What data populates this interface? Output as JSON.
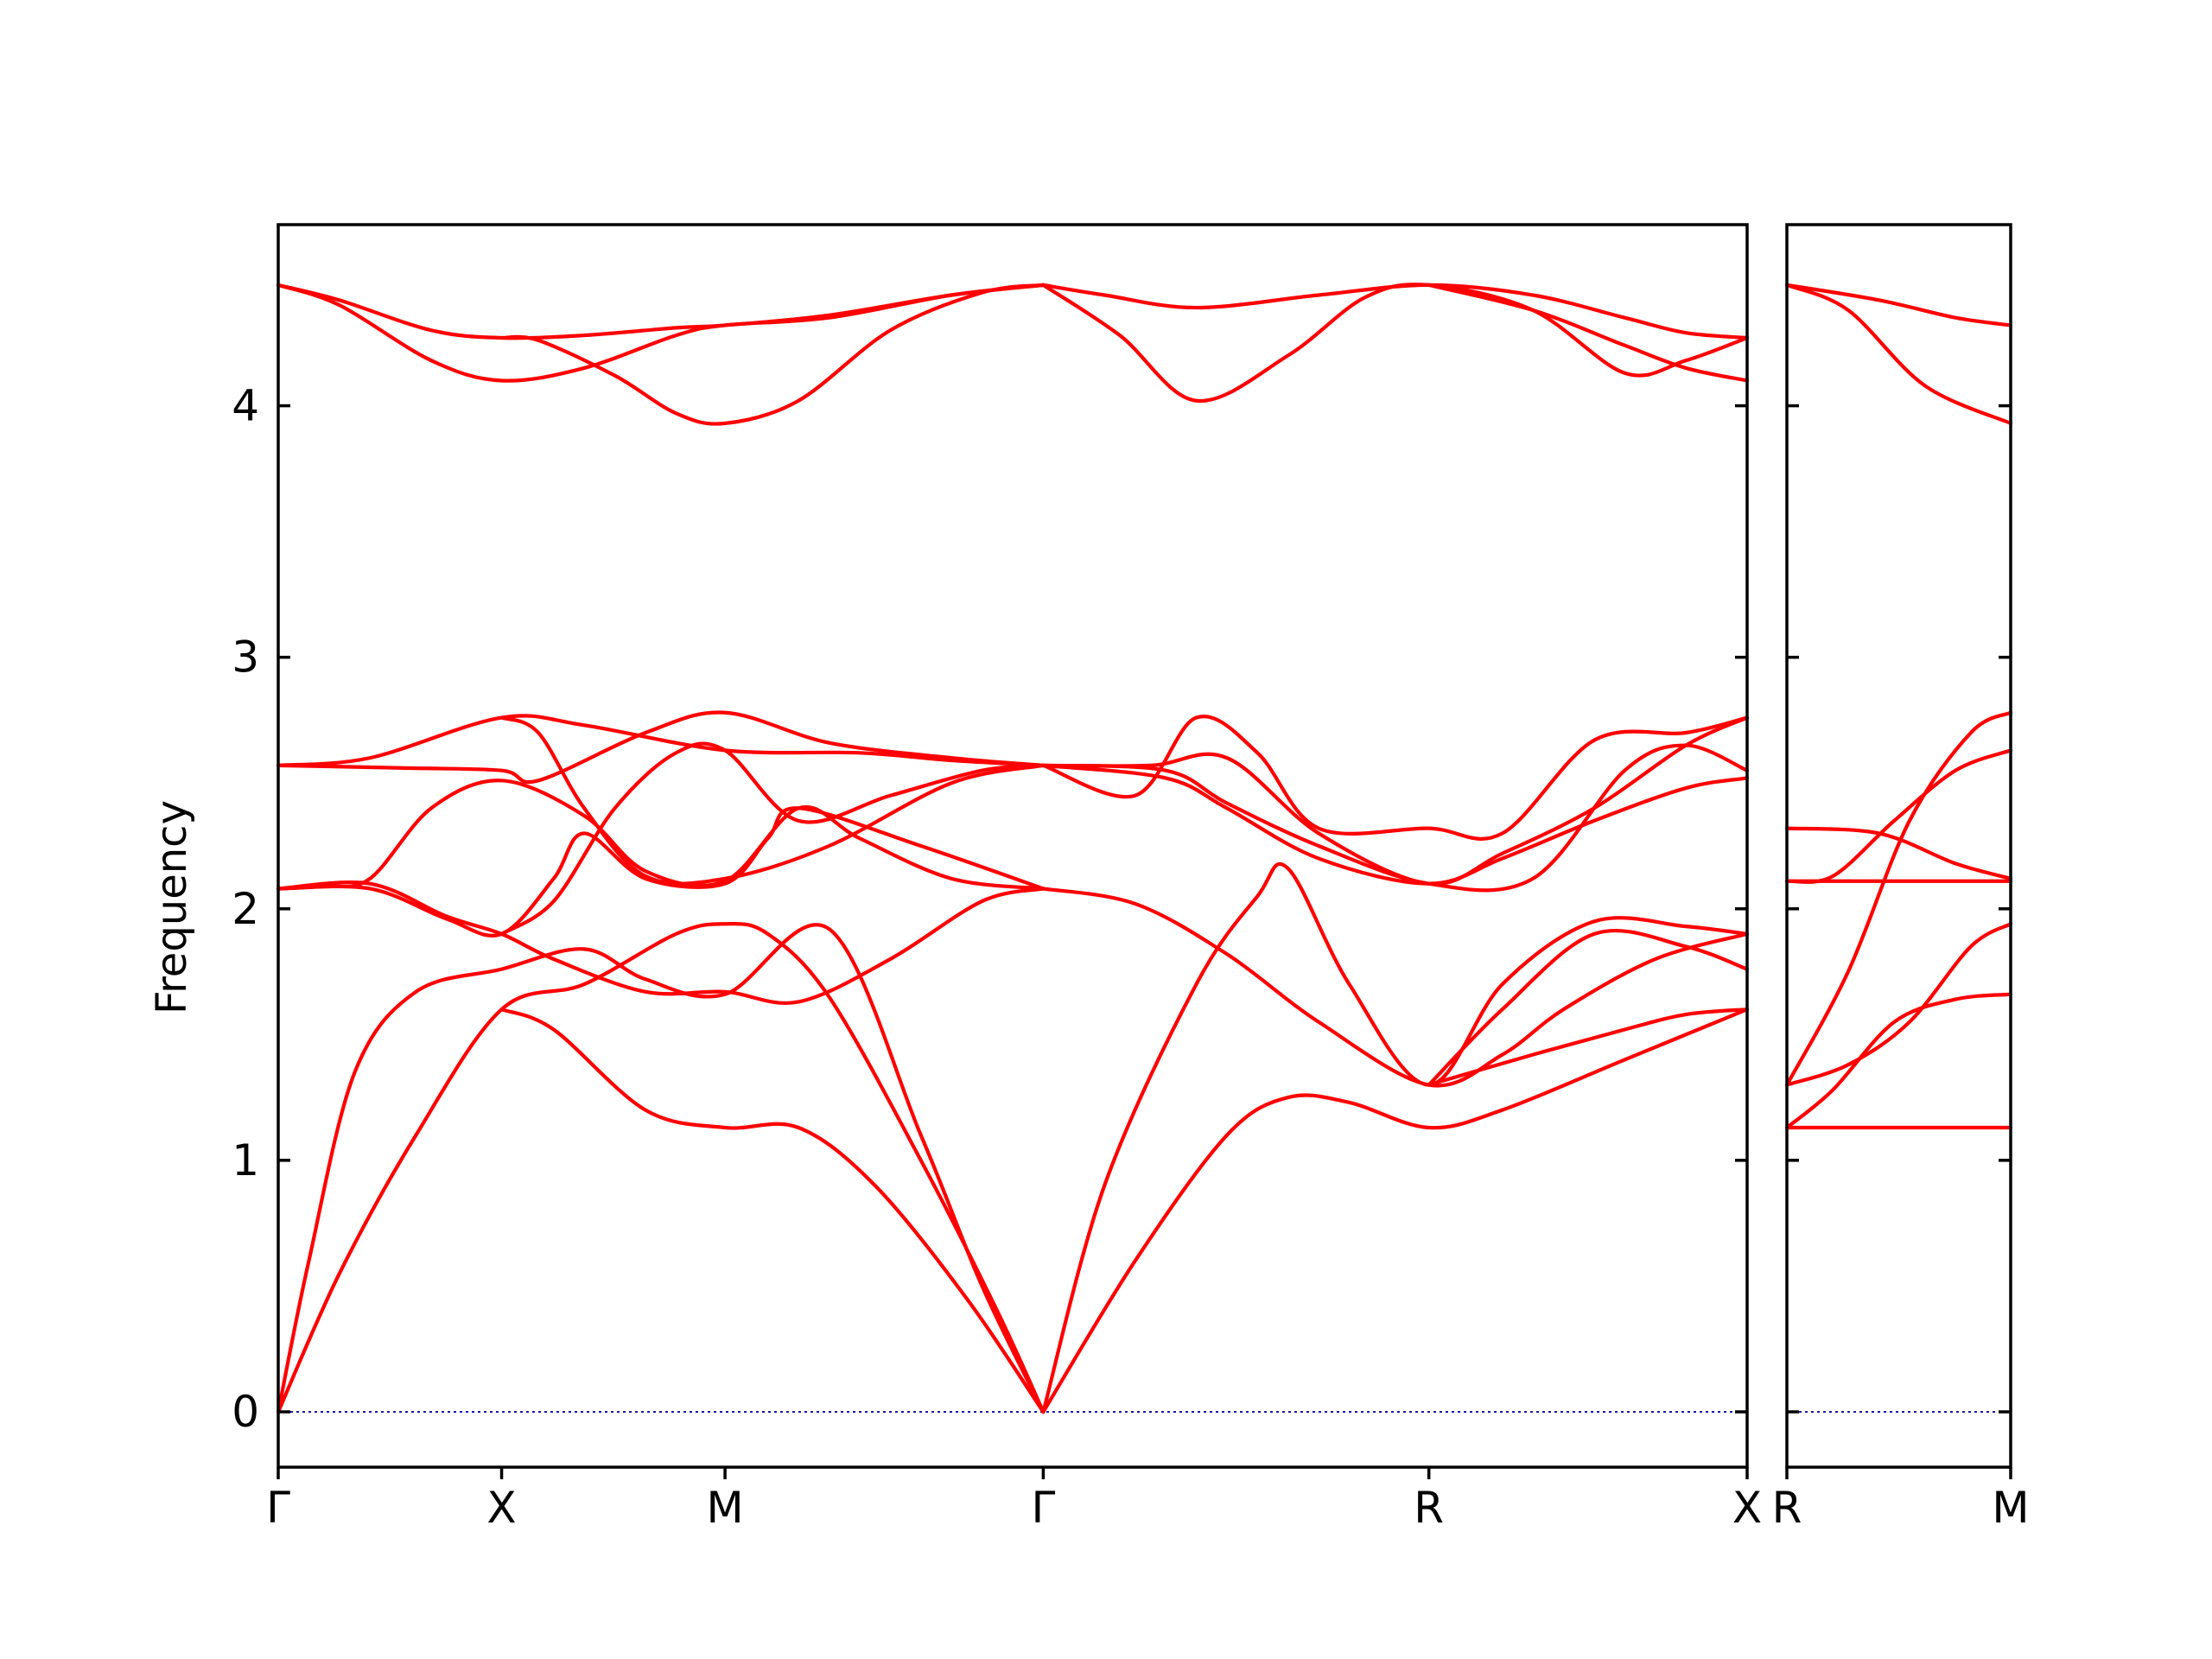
{
  "chart_data": {
    "type": "line",
    "ylabel": "Frequency",
    "ylim": [
      -0.22,
      4.72
    ],
    "yticks": [
      0,
      1,
      2,
      3,
      4
    ],
    "line_color": "#ff0000",
    "zero_line_color": "#1a1aa8",
    "panels": [
      {
        "xlim": [
          0,
          4.8
        ],
        "xticks": [
          {
            "label": "Γ",
            "x": 0
          },
          {
            "label": "X",
            "x": 0.73
          },
          {
            "label": "M",
            "x": 1.46
          },
          {
            "label": "Γ",
            "x": 2.5
          },
          {
            "label": "R",
            "x": 3.76
          },
          {
            "label": "X",
            "x": 4.8
          }
        ],
        "series": [
          {
            "x": [
              0,
              0.2,
              0.5,
              0.73,
              1.0,
              1.3,
              1.46,
              1.8,
              2.2,
              2.5
            ],
            "y": [
              4.48,
              4.42,
              4.3,
              4.27,
              4.28,
              4.31,
              4.32,
              4.36,
              4.44,
              4.48
            ]
          },
          {
            "x": [
              0,
              0.2,
              0.5,
              0.73,
              1.0,
              1.3,
              1.46,
              1.8,
              2.2,
              2.5
            ],
            "y": [
              4.48,
              4.4,
              4.18,
              4.1,
              4.15,
              4.28,
              4.32,
              4.35,
              4.44,
              4.48
            ]
          },
          {
            "x": [
              0.73,
              0.85,
              1.1,
              1.3,
              1.46,
              1.7,
              2.0,
              2.3,
              2.5
            ],
            "y": [
              4.27,
              4.26,
              4.12,
              3.97,
              3.93,
              4.02,
              4.3,
              4.45,
              4.48
            ]
          },
          {
            "x": [
              2.5,
              2.7,
              3.0,
              3.4,
              3.76,
              4.1,
              4.4,
              4.6,
              4.8
            ],
            "y": [
              4.48,
              4.44,
              4.39,
              4.44,
              4.48,
              4.44,
              4.35,
              4.29,
              4.27
            ]
          },
          {
            "x": [
              2.5,
              2.75,
              3.0,
              3.3,
              3.55,
              3.76,
              4.1,
              4.4,
              4.6,
              4.8
            ],
            "y": [
              4.48,
              4.28,
              4.02,
              4.2,
              4.43,
              4.48,
              4.38,
              4.13,
              4.18,
              4.27
            ]
          },
          {
            "x": [
              3.76,
              4.1,
              4.4,
              4.6,
              4.8
            ],
            "y": [
              4.48,
              4.38,
              4.24,
              4.15,
              4.1
            ]
          },
          {
            "x": [
              0,
              0.3,
              0.73,
              1.0,
              1.46,
              1.9,
              2.2,
              2.5
            ],
            "y": [
              2.57,
              2.6,
              2.76,
              2.73,
              2.63,
              2.62,
              2.59,
              2.57
            ]
          },
          {
            "x": [
              0,
              0.4,
              0.73,
              0.85,
              1.2,
              1.46,
              1.8,
              2.2,
              2.5
            ],
            "y": [
              2.57,
              2.56,
              2.55,
              2.51,
              2.7,
              2.78,
              2.66,
              2.6,
              2.57
            ]
          },
          {
            "x": [
              0,
              0.15,
              0.3,
              0.5,
              0.73,
              1.0,
              1.2,
              1.46,
              1.7,
              1.9,
              2.2,
              2.5
            ],
            "y": [
              2.08,
              2.09,
              2.12,
              2.4,
              2.51,
              2.37,
              2.15,
              2.11,
              2.4,
              2.28,
              2.12,
              2.08
            ]
          },
          {
            "x": [
              0,
              0.3,
              0.55,
              0.73,
              0.9,
              1.0,
              1.2,
              1.46,
              1.6,
              1.7,
              2.1,
              2.5
            ],
            "y": [
              2.08,
              2.08,
              1.96,
              1.9,
              2.12,
              2.3,
              2.12,
              2.1,
              2.28,
              2.4,
              2.25,
              2.08
            ]
          },
          {
            "x": [
              0.73,
              0.9,
              1.1,
              1.3,
              1.46,
              1.7,
              2.0,
              2.3,
              2.5
            ],
            "y": [
              1.9,
              2.03,
              2.4,
              2.62,
              2.63,
              2.35,
              2.45,
              2.55,
              2.57
            ]
          },
          {
            "x": [
              0.73,
              0.85,
              1.0,
              1.2,
              1.46,
              1.8,
              2.2,
              2.5
            ],
            "y": [
              2.76,
              2.7,
              2.4,
              2.13,
              2.12,
              2.25,
              2.5,
              2.57
            ]
          },
          {
            "x": [
              0,
              0.3,
              0.55,
              0.73,
              0.9,
              1.2,
              1.46,
              1.7,
              2.0,
              2.3,
              2.5
            ],
            "y": [
              2.08,
              2.1,
              1.97,
              1.9,
              1.8,
              1.67,
              1.67,
              1.63,
              1.8,
              2.03,
              2.08
            ]
          },
          {
            "x": [
              0,
              0.1,
              0.25,
              0.45,
              0.73,
              1.0,
              1.2,
              1.46,
              1.8,
              2.1,
              2.3,
              2.5
            ],
            "y": [
              0,
              0.6,
              1.35,
              1.67,
              1.76,
              1.84,
              1.72,
              1.66,
              1.92,
              1.1,
              0.5,
              0
            ]
          },
          {
            "x": [
              0,
              0.2,
              0.45,
              0.73,
              1.0,
              1.3,
              1.46,
              1.6,
              1.8,
              2.1,
              2.35,
              2.5
            ],
            "y": [
              0,
              0.55,
              1.1,
              1.6,
              1.7,
              1.9,
              1.94,
              1.9,
              1.65,
              1.0,
              0.4,
              0
            ]
          },
          {
            "x": [
              0.73,
              0.9,
              1.2,
              1.46,
              1.7,
              1.95,
              2.25,
              2.5
            ],
            "y": [
              1.6,
              1.52,
              1.2,
              1.13,
              1.13,
              0.9,
              0.45,
              0
            ]
          },
          {
            "x": [
              2.5,
              2.85,
              3.1,
              3.4,
              3.76,
              4.0,
              4.3,
              4.6,
              4.8
            ],
            "y": [
              2.57,
              2.57,
              2.6,
              2.3,
              2.1,
              2.22,
              2.4,
              2.65,
              2.76
            ]
          },
          {
            "x": [
              2.5,
              2.9,
              3.1,
              3.4,
              3.76,
              4.1,
              4.4,
              4.6,
              4.8
            ],
            "y": [
              2.57,
              2.55,
              2.42,
              2.25,
              2.1,
              2.12,
              2.55,
              2.65,
              2.55
            ]
          },
          {
            "x": [
              2.5,
              2.8,
              3.0,
              3.2,
              3.4,
              3.76,
              4.0,
              4.3,
              4.6,
              4.8
            ],
            "y": [
              2.57,
              2.45,
              2.76,
              2.62,
              2.32,
              2.32,
              2.3,
              2.67,
              2.7,
              2.76
            ]
          },
          {
            "x": [
              2.5,
              2.9,
              3.1,
              3.4,
              3.76,
              4.0,
              4.3,
              4.6,
              4.8
            ],
            "y": [
              2.57,
              2.52,
              2.4,
              2.2,
              2.1,
              2.2,
              2.35,
              2.48,
              2.52
            ]
          },
          {
            "x": [
              2.5,
              2.8,
              3.1,
              3.4,
              3.76,
              4.0,
              4.2,
              4.5,
              4.8
            ],
            "y": [
              2.08,
              2.02,
              1.82,
              1.55,
              1.3,
              1.42,
              1.6,
              1.8,
              1.9
            ]
          },
          {
            "x": [
              2.5,
              2.7,
              3.0,
              3.2,
              3.3,
              3.5,
              3.76,
              4.0,
              4.3,
              4.6,
              4.8
            ],
            "y": [
              0,
              0.9,
              1.7,
              2.05,
              2.16,
              1.7,
              1.3,
              1.7,
              1.95,
              1.93,
              1.9
            ]
          },
          {
            "x": [
              3.76,
              4.0,
              4.3,
              4.6,
              4.8
            ],
            "y": [
              1.3,
              1.6,
              1.9,
              1.85,
              1.76
            ]
          },
          {
            "x": [
              3.76,
              4.1,
              4.4,
              4.6,
              4.8
            ],
            "y": [
              1.3,
              1.42,
              1.52,
              1.58,
              1.6
            ]
          },
          {
            "x": [
              2.5,
              2.8,
              3.1,
              3.3,
              3.5,
              3.76,
              4.0,
              4.4,
              4.8
            ],
            "y": [
              0,
              0.6,
              1.1,
              1.25,
              1.23,
              1.13,
              1.2,
              1.4,
              1.6
            ]
          }
        ]
      },
      {
        "xlim": [
          0,
          0.73
        ],
        "xticks": [
          {
            "label": "R",
            "x": 0
          },
          {
            "label": "M",
            "x": 0.73
          }
        ],
        "series": [
          {
            "x": [
              0,
              0.3,
              0.55,
              0.73
            ],
            "y": [
              4.48,
              4.42,
              4.35,
              4.32
            ]
          },
          {
            "x": [
              0,
              0.2,
              0.45,
              0.73
            ],
            "y": [
              4.48,
              4.38,
              4.08,
              3.93
            ]
          },
          {
            "x": [
              0,
              0.73
            ],
            "y": [
              2.11,
              2.11
            ]
          },
          {
            "x": [
              0,
              0.3,
              0.55,
              0.73
            ],
            "y": [
              2.32,
              2.3,
              2.18,
              2.12
            ]
          },
          {
            "x": [
              0,
              0.15,
              0.35,
              0.55,
              0.73
            ],
            "y": [
              2.11,
              2.13,
              2.35,
              2.55,
              2.63
            ]
          },
          {
            "x": [
              0,
              0.2,
              0.4,
              0.6,
              0.73
            ],
            "y": [
              1.3,
              1.75,
              2.35,
              2.7,
              2.78
            ]
          },
          {
            "x": [
              0,
              0.2,
              0.4,
              0.6,
              0.73
            ],
            "y": [
              1.3,
              1.38,
              1.55,
              1.85,
              1.94
            ]
          },
          {
            "x": [
              0,
              0.15,
              0.35,
              0.55,
              0.73
            ],
            "y": [
              1.13,
              1.28,
              1.55,
              1.64,
              1.66
            ]
          },
          {
            "x": [
              0,
              0.73
            ],
            "y": [
              1.13,
              1.13
            ]
          }
        ]
      }
    ]
  }
}
